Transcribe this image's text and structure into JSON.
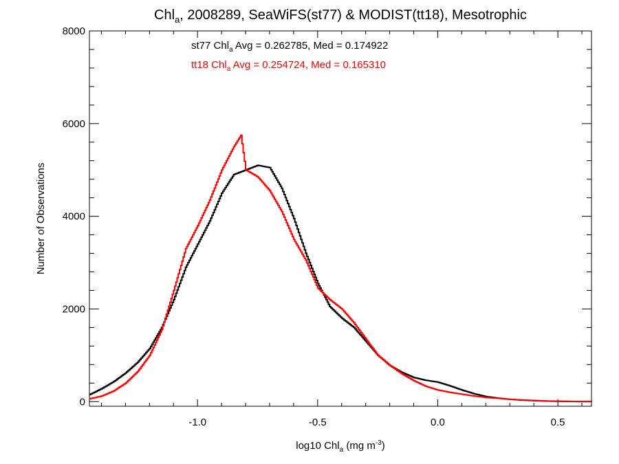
{
  "chart_data": {
    "type": "line",
    "title": {
      "prefix": "Chl",
      "sub": "a",
      "suffix": ", 2008289, SeaWiFS(st77) & MODIST(tt18), Mesotrophic"
    },
    "xlabel": {
      "prefix": "log10 Chl",
      "sub": "a",
      "mid": " (mg m",
      "sup": "-3",
      "suffix": ")"
    },
    "ylabel": "Number of Observations",
    "xlim": [
      -1.45,
      0.64
    ],
    "ylim": [
      -100,
      8000
    ],
    "x_ticks": [
      {
        "value": -1.0,
        "label": "-1.0"
      },
      {
        "value": -0.5,
        "label": "-0.5"
      },
      {
        "value": 0.0,
        "label": "0.0"
      },
      {
        "value": 0.5,
        "label": "0.5"
      }
    ],
    "x_minor_step": 0.1,
    "y_ticks": [
      {
        "value": 0,
        "label": "0"
      },
      {
        "value": 2000,
        "label": "2000"
      },
      {
        "value": 4000,
        "label": "4000"
      },
      {
        "value": 6000,
        "label": "6000"
      },
      {
        "value": 8000,
        "label": "8000"
      }
    ],
    "y_minor_step": 400,
    "grid": false,
    "legend_position": "top-center",
    "series": [
      {
        "name": "st77",
        "color": "#000000",
        "annotation": {
          "prefix": "st77 Chl",
          "sub": "a",
          "suffix": " Avg = 0.262785, Med = 0.174922"
        },
        "points": [
          [
            -1.45,
            150
          ],
          [
            -1.4,
            280
          ],
          [
            -1.35,
            430
          ],
          [
            -1.3,
            620
          ],
          [
            -1.25,
            850
          ],
          [
            -1.2,
            1150
          ],
          [
            -1.15,
            1600
          ],
          [
            -1.1,
            2200
          ],
          [
            -1.05,
            2900
          ],
          [
            -1.0,
            3400
          ],
          [
            -0.95,
            3900
          ],
          [
            -0.9,
            4500
          ],
          [
            -0.85,
            4900
          ],
          [
            -0.8,
            5000
          ],
          [
            -0.75,
            5100
          ],
          [
            -0.7,
            5050
          ],
          [
            -0.65,
            4600
          ],
          [
            -0.6,
            3950
          ],
          [
            -0.55,
            3200
          ],
          [
            -0.5,
            2550
          ],
          [
            -0.45,
            2050
          ],
          [
            -0.4,
            1800
          ],
          [
            -0.35,
            1600
          ],
          [
            -0.3,
            1300
          ],
          [
            -0.25,
            1000
          ],
          [
            -0.2,
            780
          ],
          [
            -0.15,
            630
          ],
          [
            -0.1,
            520
          ],
          [
            -0.05,
            460
          ],
          [
            0.0,
            420
          ],
          [
            0.05,
            340
          ],
          [
            0.1,
            250
          ],
          [
            0.15,
            170
          ],
          [
            0.2,
            110
          ],
          [
            0.25,
            75
          ],
          [
            0.3,
            50
          ],
          [
            0.35,
            32
          ],
          [
            0.4,
            20
          ],
          [
            0.45,
            12
          ],
          [
            0.5,
            7
          ],
          [
            0.55,
            4
          ],
          [
            0.6,
            2
          ],
          [
            0.64,
            1
          ]
        ]
      },
      {
        "name": "tt18",
        "color": "#ff0000",
        "annotation": {
          "prefix": "tt18 Chl",
          "sub": "a",
          "suffix": " Avg = 0.254724, Med = 0.165310"
        },
        "points": [
          [
            -1.45,
            60
          ],
          [
            -1.4,
            120
          ],
          [
            -1.35,
            230
          ],
          [
            -1.3,
            400
          ],
          [
            -1.25,
            650
          ],
          [
            -1.2,
            1000
          ],
          [
            -1.15,
            1550
          ],
          [
            -1.1,
            2400
          ],
          [
            -1.05,
            3300
          ],
          [
            -1.0,
            3800
          ],
          [
            -0.95,
            4350
          ],
          [
            -0.9,
            5000
          ],
          [
            -0.85,
            5500
          ],
          [
            -0.82,
            5750
          ],
          [
            -0.8,
            5000
          ],
          [
            -0.75,
            4850
          ],
          [
            -0.7,
            4550
          ],
          [
            -0.65,
            4100
          ],
          [
            -0.6,
            3500
          ],
          [
            -0.55,
            3050
          ],
          [
            -0.5,
            2450
          ],
          [
            -0.45,
            2200
          ],
          [
            -0.4,
            2000
          ],
          [
            -0.35,
            1700
          ],
          [
            -0.3,
            1350
          ],
          [
            -0.25,
            1000
          ],
          [
            -0.2,
            780
          ],
          [
            -0.15,
            600
          ],
          [
            -0.1,
            450
          ],
          [
            -0.05,
            330
          ],
          [
            0.0,
            250
          ],
          [
            0.05,
            200
          ],
          [
            0.1,
            160
          ],
          [
            0.15,
            120
          ],
          [
            0.2,
            90
          ],
          [
            0.25,
            70
          ],
          [
            0.3,
            50
          ],
          [
            0.35,
            35
          ],
          [
            0.4,
            25
          ],
          [
            0.45,
            15
          ],
          [
            0.5,
            10
          ],
          [
            0.55,
            5
          ],
          [
            0.6,
            3
          ],
          [
            0.64,
            2
          ]
        ]
      }
    ]
  }
}
